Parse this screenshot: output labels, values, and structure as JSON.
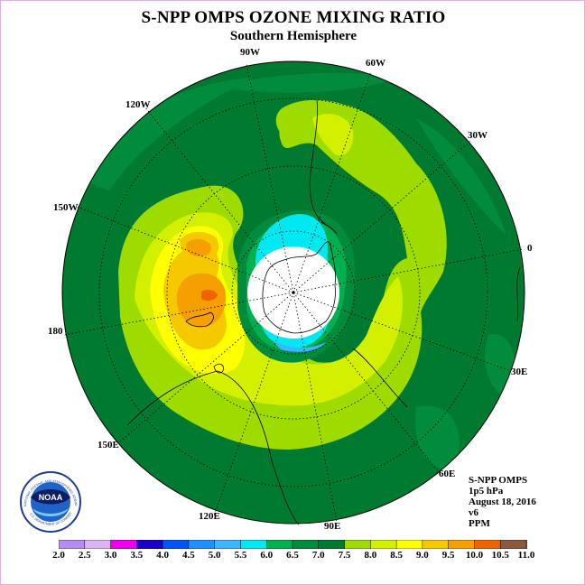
{
  "title": "S-NPP OMPS OZONE MIXING RATIO",
  "subtitle": "Southern Hemisphere",
  "longitude_labels": {
    "w90": "90W",
    "w60": "60W",
    "w120": "120W",
    "w30": "30W",
    "w150": "150W",
    "e0": "0",
    "e180": "180",
    "e30": "30E",
    "e150": "150E",
    "e60": "60E",
    "e120": "120E",
    "e90": "90E"
  },
  "info": {
    "line1": "S-NPP OMPS",
    "line2": "1p5 hPa",
    "line3": "August 18, 2016",
    "line4": "v6",
    "line5": "PPM"
  },
  "logo": {
    "text": "NOAA",
    "ring_text": "NATIONAL OCEANIC AND ATMOSPHERIC ADMINISTRATION",
    "ring_text_bottom": "U.S. DEPARTMENT OF COMMERCE"
  },
  "colorbar": {
    "labels": [
      "2.0",
      "2.5",
      "3.0",
      "3.5",
      "4.0",
      "4.5",
      "5.0",
      "5.5",
      "6.0",
      "6.5",
      "7.0",
      "7.5",
      "8.0",
      "8.5",
      "9.0",
      "9.5",
      "10.0",
      "10.5",
      "11.0"
    ],
    "colors": [
      "#b68cf2",
      "#dcb4f2",
      "#ee00ee",
      "#1e00cc",
      "#0055ff",
      "#1e90ff",
      "#3eb6ff",
      "#00e8f2",
      "#00b050",
      "#008c3c",
      "#007a30",
      "#9edc00",
      "#d2f000",
      "#ffff00",
      "#f5c800",
      "#f5a000",
      "#f06400",
      "#e61414",
      "#8b5a3c"
    ],
    "values": [
      2.0,
      2.5,
      3.0,
      3.5,
      4.0,
      4.5,
      5.0,
      5.5,
      6.0,
      6.5,
      7.0,
      7.5,
      8.0,
      8.5,
      9.0,
      9.5,
      10.0,
      10.5,
      11.0
    ]
  },
  "colors": {
    "background_field": "#007a30",
    "no_data_pole": "#ffffff",
    "border": "#d9b3d9"
  }
}
